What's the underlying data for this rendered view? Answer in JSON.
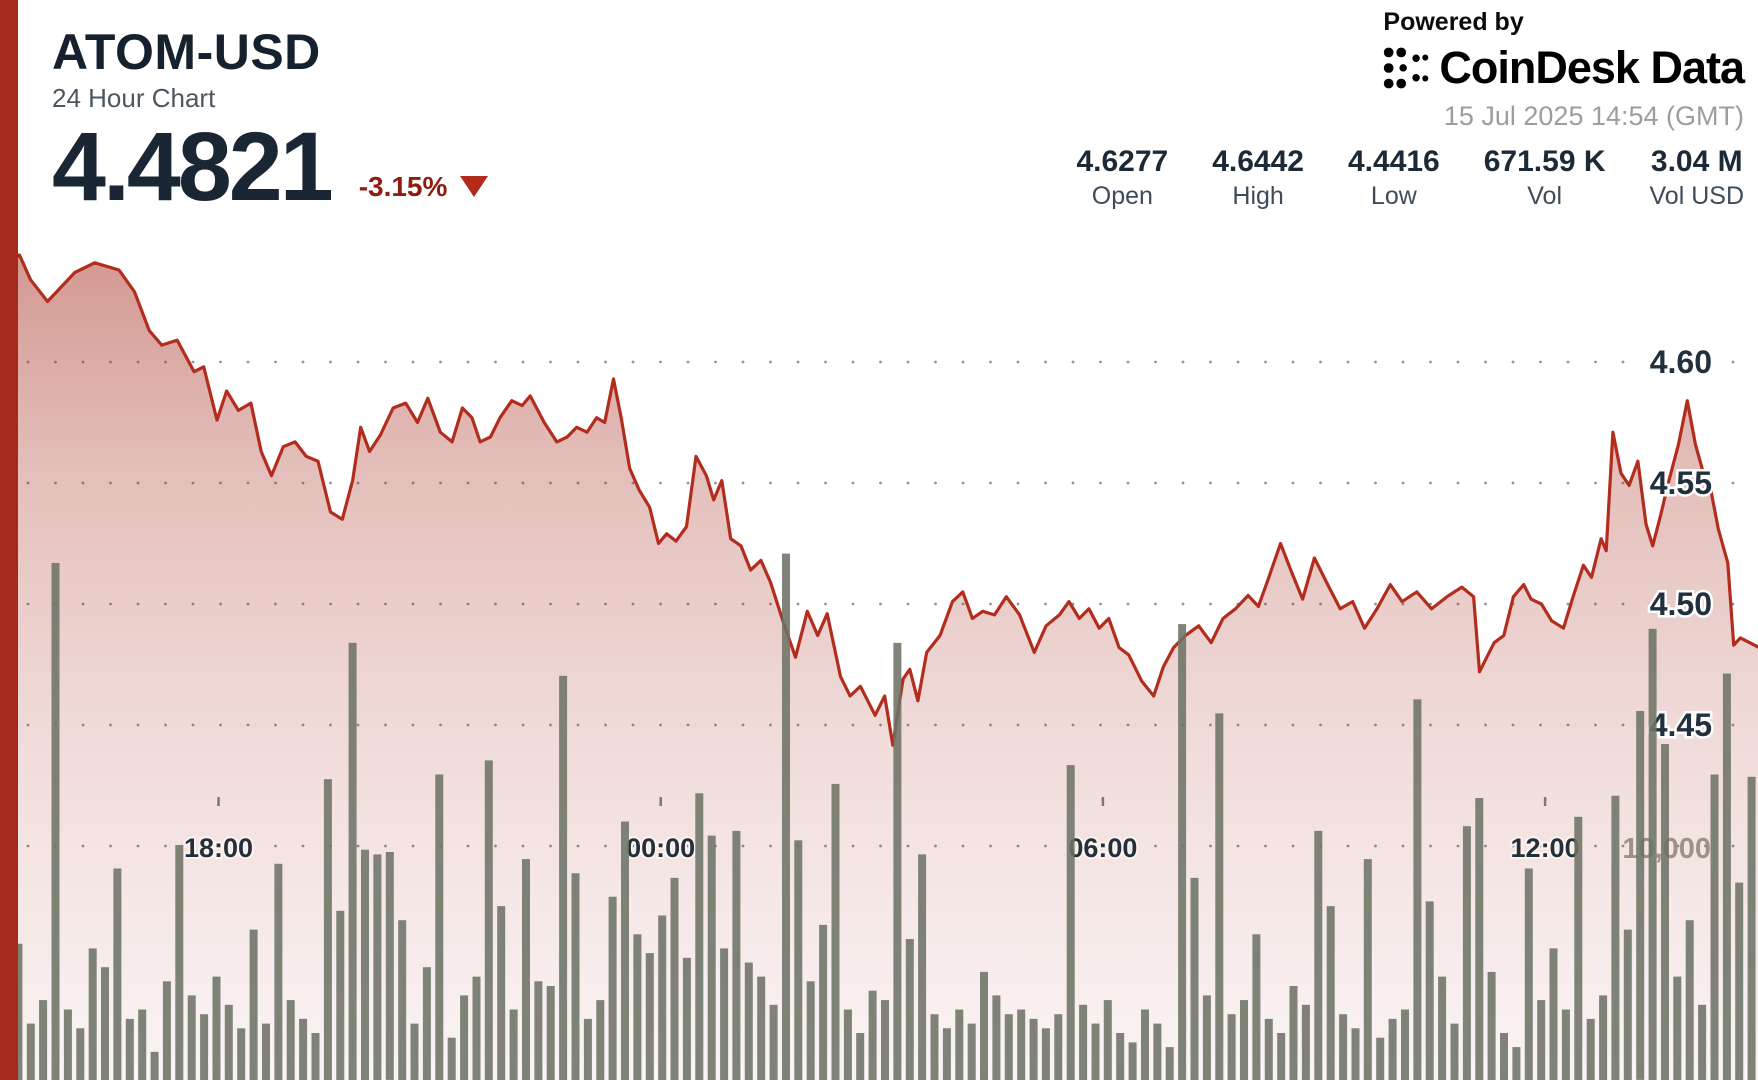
{
  "header": {
    "symbol": "ATOM-USD",
    "subtitle": "24 Hour Chart",
    "price": "4.4821",
    "change": "-3.15%",
    "change_direction": "down"
  },
  "branding": {
    "powered_by": "Powered by",
    "logo_text": "CoinDesk Data",
    "timestamp": "15 Jul 2025 14:54 (GMT)"
  },
  "stats": [
    {
      "value": "4.6277",
      "label": "Open"
    },
    {
      "value": "4.6442",
      "label": "High"
    },
    {
      "value": "4.4416",
      "label": "Low"
    },
    {
      "value": "671.59 K",
      "label": "Vol"
    },
    {
      "value": "3.04 M",
      "label": "Vol USD"
    }
  ],
  "chart_data": {
    "type": "line+bar",
    "title": "ATOM-USD 24 Hour Chart",
    "x_unit": "hours elapsed in 24h window ending 15 Jul 2025 14:54 GMT",
    "x_range_hours": [
      0,
      24
    ],
    "ylim": [
      4.4,
      4.66
    ],
    "grid": "dotted horizontal",
    "y_ticks": [
      {
        "value": 4.6,
        "label": "4.60"
      },
      {
        "value": 4.55,
        "label": "4.55"
      },
      {
        "value": 4.5,
        "label": "4.50"
      },
      {
        "value": 4.45,
        "label": "4.45"
      }
    ],
    "y_gridlines": [
      4.6,
      4.55,
      4.5,
      4.45,
      4.4
    ],
    "x_ticks": [
      {
        "hour": 3.1,
        "label": "18:00"
      },
      {
        "hour": 9.1,
        "label": "00:00"
      },
      {
        "hour": 15.1,
        "label": "06:00"
      },
      {
        "hour": 21.1,
        "label": "12:00"
      }
    ],
    "volume_axis_label": {
      "value_thousands": 10,
      "label": "10,000",
      "hour": 22.75
    },
    "summary": {
      "open": 4.6277,
      "high": 4.6442,
      "low": 4.4416,
      "close": 4.4821,
      "vol": "671.59 K",
      "vol_usd": "3.04 M"
    },
    "price_series": [
      [
        0.1,
        4.638
      ],
      [
        0.4,
        4.6442
      ],
      [
        0.55,
        4.634
      ],
      [
        0.78,
        4.625
      ],
      [
        1.15,
        4.637
      ],
      [
        1.42,
        4.641
      ],
      [
        1.75,
        4.638
      ],
      [
        1.96,
        4.629
      ],
      [
        2.16,
        4.613
      ],
      [
        2.33,
        4.607
      ],
      [
        2.54,
        4.609
      ],
      [
        2.77,
        4.596
      ],
      [
        2.9,
        4.598
      ],
      [
        3.08,
        4.576
      ],
      [
        3.21,
        4.588
      ],
      [
        3.37,
        4.58
      ],
      [
        3.54,
        4.583
      ],
      [
        3.68,
        4.563
      ],
      [
        3.82,
        4.553
      ],
      [
        3.98,
        4.565
      ],
      [
        4.14,
        4.567
      ],
      [
        4.29,
        4.561
      ],
      [
        4.45,
        4.559
      ],
      [
        4.62,
        4.538
      ],
      [
        4.78,
        4.535
      ],
      [
        4.92,
        4.551
      ],
      [
        5.03,
        4.573
      ],
      [
        5.15,
        4.563
      ],
      [
        5.3,
        4.57
      ],
      [
        5.47,
        4.581
      ],
      [
        5.64,
        4.583
      ],
      [
        5.8,
        4.575
      ],
      [
        5.94,
        4.585
      ],
      [
        6.11,
        4.571
      ],
      [
        6.27,
        4.567
      ],
      [
        6.41,
        4.581
      ],
      [
        6.54,
        4.577
      ],
      [
        6.65,
        4.567
      ],
      [
        6.79,
        4.569
      ],
      [
        6.92,
        4.577
      ],
      [
        7.08,
        4.584
      ],
      [
        7.22,
        4.582
      ],
      [
        7.33,
        4.586
      ],
      [
        7.52,
        4.575
      ],
      [
        7.69,
        4.567
      ],
      [
        7.83,
        4.569
      ],
      [
        7.96,
        4.573
      ],
      [
        8.1,
        4.571
      ],
      [
        8.23,
        4.577
      ],
      [
        8.34,
        4.575
      ],
      [
        8.46,
        4.593
      ],
      [
        8.57,
        4.576
      ],
      [
        8.68,
        4.556
      ],
      [
        8.81,
        4.547
      ],
      [
        8.95,
        4.54
      ],
      [
        9.07,
        4.525
      ],
      [
        9.18,
        4.529
      ],
      [
        9.31,
        4.526
      ],
      [
        9.45,
        4.532
      ],
      [
        9.58,
        4.561
      ],
      [
        9.72,
        4.553
      ],
      [
        9.82,
        4.543
      ],
      [
        9.93,
        4.551
      ],
      [
        10.05,
        4.527
      ],
      [
        10.19,
        4.524
      ],
      [
        10.32,
        4.514
      ],
      [
        10.46,
        4.518
      ],
      [
        10.59,
        4.509
      ],
      [
        10.77,
        4.492
      ],
      [
        10.93,
        4.478
      ],
      [
        11.09,
        4.497
      ],
      [
        11.23,
        4.487
      ],
      [
        11.36,
        4.496
      ],
      [
        11.54,
        4.47
      ],
      [
        11.67,
        4.462
      ],
      [
        11.81,
        4.466
      ],
      [
        12.01,
        4.454
      ],
      [
        12.14,
        4.462
      ],
      [
        12.25,
        4.4416
      ],
      [
        12.39,
        4.469
      ],
      [
        12.48,
        4.473
      ],
      [
        12.59,
        4.46
      ],
      [
        12.71,
        4.48
      ],
      [
        12.89,
        4.487
      ],
      [
        13.06,
        4.501
      ],
      [
        13.2,
        4.505
      ],
      [
        13.33,
        4.494
      ],
      [
        13.47,
        4.497
      ],
      [
        13.63,
        4.4955
      ],
      [
        13.79,
        4.503
      ],
      [
        13.97,
        4.4955
      ],
      [
        14.17,
        4.48
      ],
      [
        14.33,
        4.491
      ],
      [
        14.51,
        4.4955
      ],
      [
        14.64,
        4.501
      ],
      [
        14.78,
        4.494
      ],
      [
        14.91,
        4.498
      ],
      [
        15.05,
        4.49
      ],
      [
        15.18,
        4.494
      ],
      [
        15.32,
        4.482
      ],
      [
        15.45,
        4.479
      ],
      [
        15.63,
        4.468
      ],
      [
        15.79,
        4.462
      ],
      [
        15.92,
        4.474
      ],
      [
        16.06,
        4.482
      ],
      [
        16.22,
        4.487
      ],
      [
        16.4,
        4.491
      ],
      [
        16.57,
        4.484
      ],
      [
        16.73,
        4.494
      ],
      [
        16.9,
        4.498
      ],
      [
        17.07,
        4.5035
      ],
      [
        17.21,
        4.499
      ],
      [
        17.34,
        4.51
      ],
      [
        17.51,
        4.525
      ],
      [
        17.65,
        4.514
      ],
      [
        17.81,
        4.502
      ],
      [
        17.97,
        4.519
      ],
      [
        18.15,
        4.508
      ],
      [
        18.32,
        4.498
      ],
      [
        18.49,
        4.501
      ],
      [
        18.65,
        4.49
      ],
      [
        18.82,
        4.498
      ],
      [
        19.0,
        4.508
      ],
      [
        19.16,
        4.501
      ],
      [
        19.36,
        4.505
      ],
      [
        19.56,
        4.498
      ],
      [
        19.77,
        4.503
      ],
      [
        19.97,
        4.507
      ],
      [
        20.13,
        4.503
      ],
      [
        20.21,
        4.472
      ],
      [
        20.31,
        4.478
      ],
      [
        20.41,
        4.484
      ],
      [
        20.54,
        4.487
      ],
      [
        20.67,
        4.503
      ],
      [
        20.81,
        4.508
      ],
      [
        20.91,
        4.502
      ],
      [
        21.05,
        4.5
      ],
      [
        21.19,
        4.493
      ],
      [
        21.35,
        4.49
      ],
      [
        21.48,
        4.503
      ],
      [
        21.62,
        4.516
      ],
      [
        21.73,
        4.511
      ],
      [
        21.86,
        4.527
      ],
      [
        21.93,
        4.522
      ],
      [
        22.02,
        4.571
      ],
      [
        22.13,
        4.554
      ],
      [
        22.24,
        4.549
      ],
      [
        22.36,
        4.559
      ],
      [
        22.47,
        4.533
      ],
      [
        22.56,
        4.524
      ],
      [
        22.67,
        4.537
      ],
      [
        22.78,
        4.551
      ],
      [
        22.91,
        4.566
      ],
      [
        23.03,
        4.584
      ],
      [
        23.14,
        4.566
      ],
      [
        23.24,
        4.555
      ],
      [
        23.35,
        4.547
      ],
      [
        23.45,
        4.531
      ],
      [
        23.58,
        4.517
      ],
      [
        23.66,
        4.483
      ],
      [
        23.75,
        4.486
      ],
      [
        24.0,
        4.4821
      ]
    ],
    "volume_series_thousands": [
      3.2,
      5.8,
      2.4,
      3.4,
      22.0,
      3.0,
      2.2,
      5.6,
      4.8,
      9.0,
      2.6,
      3.0,
      1.2,
      4.2,
      10.0,
      3.6,
      2.8,
      4.4,
      3.2,
      2.2,
      6.4,
      2.4,
      9.2,
      3.4,
      2.6,
      2.0,
      12.8,
      7.2,
      18.6,
      9.8,
      9.6,
      9.7,
      6.8,
      2.4,
      4.8,
      13.0,
      1.8,
      3.6,
      4.4,
      13.6,
      7.4,
      3.0,
      9.4,
      4.2,
      4.0,
      17.2,
      8.8,
      2.6,
      3.4,
      7.8,
      11.0,
      6.2,
      5.4,
      7.0,
      8.6,
      5.2,
      12.2,
      10.4,
      5.6,
      10.6,
      5.0,
      4.4,
      3.2,
      22.4,
      10.2,
      4.2,
      6.6,
      12.6,
      3.0,
      2.0,
      3.8,
      3.4,
      18.6,
      6.0,
      9.6,
      2.8,
      2.2,
      3.0,
      2.4,
      4.6,
      3.6,
      2.8,
      3.0,
      2.6,
      2.2,
      2.8,
      13.4,
      3.2,
      2.4,
      3.4,
      2.0,
      1.6,
      3.0,
      2.4,
      1.4,
      19.4,
      8.6,
      3.6,
      15.6,
      2.8,
      3.4,
      6.2,
      2.6,
      2.0,
      4.0,
      3.2,
      10.6,
      7.4,
      2.8,
      2.2,
      9.4,
      1.8,
      2.6,
      3.0,
      16.2,
      7.6,
      4.4,
      2.4,
      10.8,
      12.0,
      4.6,
      2.0,
      1.4,
      9.0,
      3.4,
      5.6,
      3.0,
      11.2,
      2.6,
      3.6,
      12.1,
      6.4,
      15.7,
      19.2,
      14.3,
      4.4,
      6.8,
      3.2,
      13.0,
      17.3,
      8.4,
      12.9
    ],
    "colors": {
      "line": "#b22d1e",
      "area_fill": "#a52a1c",
      "left_bar": "#a52a1c",
      "volume_bar": "#6d7365",
      "axis_text": "#22303e",
      "grid_dot": "#6a7077",
      "muted_volume_label": "#8f8379"
    }
  }
}
